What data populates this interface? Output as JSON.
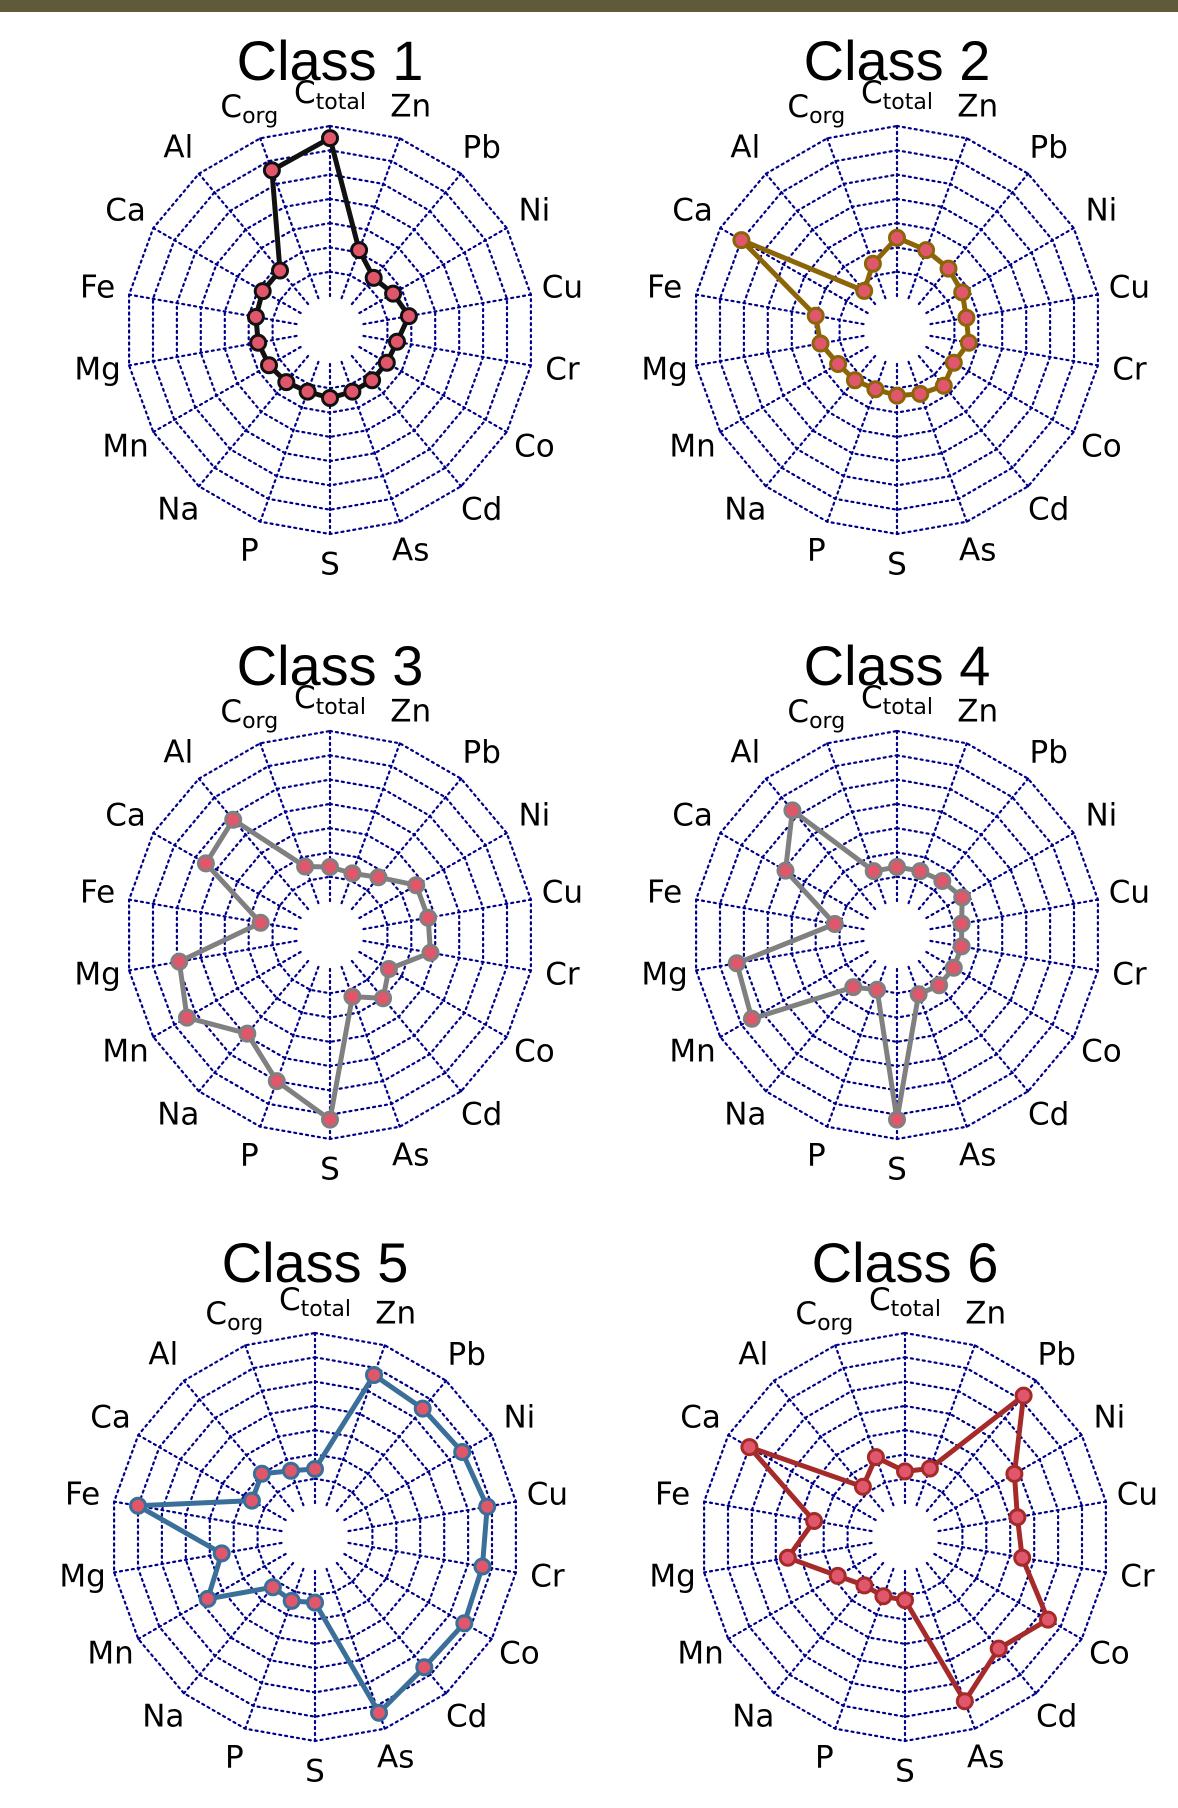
{
  "chart_data": [
    {
      "type": "radar",
      "title": "Class 1",
      "axes": [
        "Ctotal",
        "Zn",
        "Pb",
        "Ni",
        "Cu",
        "Cr",
        "Co",
        "Cd",
        "As",
        "S",
        "P",
        "Na",
        "Mn",
        "Mg",
        "Fe",
        "Ca",
        "Al",
        "Corg"
      ],
      "values": [
        6.5,
        2.1,
        1.4,
        1.6,
        1.9,
        1.4,
        1.3,
        1.3,
        1.3,
        1.4,
        1.3,
        1.4,
        1.5,
        1.6,
        1.7,
        1.8,
        1.8,
        5.6
      ],
      "line_color": "#111111",
      "point_stroke": "#111111",
      "range": [
        0,
        7
      ]
    },
    {
      "type": "radar",
      "title": "Class 2",
      "axes": [
        "Ctotal",
        "Zn",
        "Pb",
        "Ni",
        "Cu",
        "Cr",
        "Co",
        "Cd",
        "As",
        "S",
        "P",
        "Na",
        "Mn",
        "Mg",
        "Fe",
        "Ca",
        "Al",
        "Corg"
      ],
      "values": [
        2.4,
        2.1,
        1.9,
        1.7,
        1.5,
        1.6,
        1.3,
        1.6,
        1.4,
        1.3,
        1.2,
        1.3,
        1.4,
        1.8,
        2.0,
        6.0,
        0.7,
        1.5
      ],
      "line_color": "#8b6508",
      "point_stroke": "#8b6508",
      "range": [
        0,
        7
      ]
    },
    {
      "type": "radar",
      "title": "Class 3",
      "axes": [
        "Ctotal",
        "Zn",
        "Pb",
        "Ni",
        "Cu",
        "Cr",
        "Co",
        "Cd",
        "As",
        "S",
        "P",
        "Na",
        "Mn",
        "Mg",
        "Fe",
        "Ca",
        "Al",
        "Corg"
      ],
      "values": [
        1.4,
        1.3,
        1.7,
        2.7,
        2.7,
        2.8,
        1.4,
        2.0,
        1.3,
        6.2,
        5.0,
        3.9,
        5.4,
        4.9,
        1.5,
        4.5,
        4.8,
        1.6
      ],
      "line_color": "#808080",
      "point_stroke": "#808080",
      "range": [
        0,
        7
      ]
    },
    {
      "type": "radar",
      "title": "Class 4",
      "axes": [
        "Ctotal",
        "Zn",
        "Pb",
        "Ni",
        "Cu",
        "Cr",
        "Co",
        "Cd",
        "As",
        "S",
        "P",
        "Na",
        "Mn",
        "Mg",
        "Fe",
        "Ca",
        "Al",
        "Corg"
      ],
      "values": [
        1.4,
        1.4,
        1.5,
        1.7,
        1.3,
        1.3,
        1.3,
        1.3,
        1.2,
        6.2,
        1.0,
        1.4,
        5.5,
        5.3,
        1.2,
        3.9,
        5.3,
        1.4
      ],
      "line_color": "#808080",
      "point_stroke": "#808080",
      "range": [
        0,
        7
      ]
    },
    {
      "type": "radar",
      "title": "Class 5",
      "axes": [
        "Ctotal",
        "Zn",
        "Pb",
        "Ni",
        "Cu",
        "Cr",
        "Co",
        "Cd",
        "As",
        "S",
        "P",
        "Na",
        "Mn",
        "Mg",
        "Fe",
        "Ca",
        "Al",
        "Corg"
      ],
      "values": [
        1.4,
        5.7,
        5.5,
        5.6,
        5.8,
        5.6,
        5.7,
        5.6,
        6.3,
        1.3,
        1.4,
        1.3,
        3.7,
        2.5,
        6.0,
        1.6,
        2.0,
        1.5
      ],
      "line_color": "#3a6f99",
      "point_stroke": "#3a6f99",
      "range": [
        0,
        7
      ]
    },
    {
      "type": "radar",
      "title": "Class 6",
      "axes": [
        "Ctotal",
        "Zn",
        "Pb",
        "Ni",
        "Cu",
        "Cr",
        "Co",
        "Cd",
        "As",
        "S",
        "P",
        "Na",
        "Mn",
        "Mg",
        "Fe",
        "Ca",
        "Al",
        "Corg"
      ],
      "values": [
        1.3,
        1.6,
        6.2,
        3.8,
        3.3,
        3.5,
        5.4,
        4.6,
        5.8,
        1.2,
        1.2,
        1.2,
        1.8,
        3.5,
        2.4,
        6.0,
        1.3,
        2.1
      ],
      "line_color": "#a52a2a",
      "point_stroke": "#a52a2a",
      "range": [
        0,
        7
      ]
    }
  ]
}
